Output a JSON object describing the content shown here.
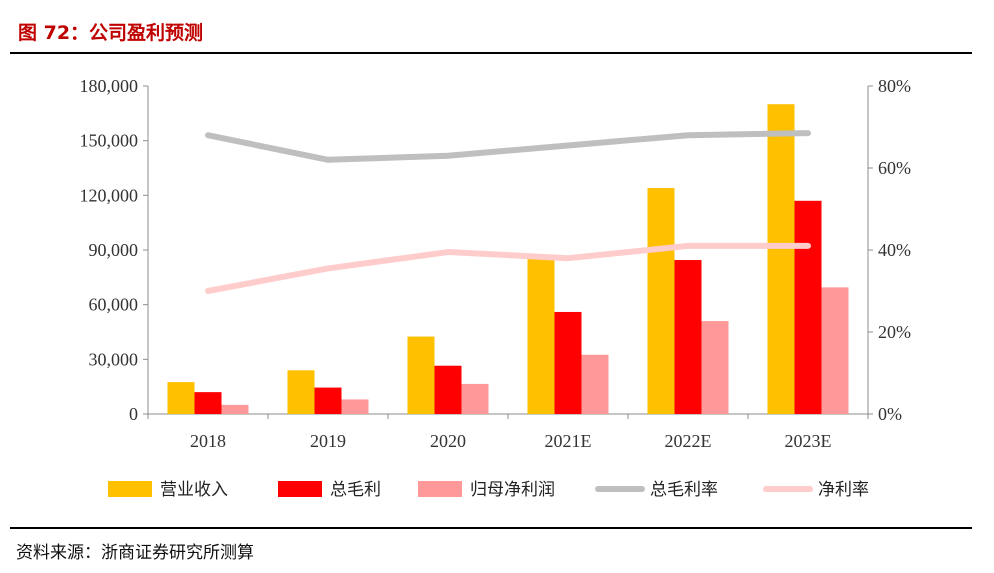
{
  "figure_title": "图 72：公司盈利预测",
  "source": "资料来源：浙商证券研究所测算",
  "chart_data": {
    "type": "bar",
    "title": "图 72：公司盈利预测",
    "categories": [
      "2018",
      "2019",
      "2020",
      "2021E",
      "2022E",
      "2023E"
    ],
    "ylim": [
      0,
      180000
    ],
    "y_ticks": [
      0,
      30000,
      60000,
      90000,
      120000,
      150000,
      180000
    ],
    "y_tick_labels": [
      "0",
      "30,000",
      "60,000",
      "90,000",
      "120,000",
      "150,000",
      "180,000"
    ],
    "y2lim": [
      0,
      80
    ],
    "y2_ticks": [
      0,
      20,
      40,
      60,
      80
    ],
    "y2_tick_labels": [
      "0%",
      "20%",
      "40%",
      "60%",
      "80%"
    ],
    "series": [
      {
        "name": "营业收入",
        "kind": "bar",
        "axis": "left",
        "color": "#ffc000",
        "values": [
          17500,
          24000,
          42500,
          86000,
          124000,
          170000
        ]
      },
      {
        "name": "总毛利",
        "kind": "bar",
        "axis": "left",
        "color": "#ff0000",
        "values": [
          12000,
          14500,
          26500,
          56000,
          84500,
          117000
        ]
      },
      {
        "name": "归母净利润",
        "kind": "bar",
        "axis": "left",
        "color": "#ff9999",
        "values": [
          5000,
          8000,
          16500,
          32500,
          51000,
          69500
        ]
      },
      {
        "name": "总毛利率",
        "kind": "line",
        "axis": "right",
        "color": "#bfbfbf",
        "values": [
          68,
          62,
          63,
          65.5,
          68,
          68.5
        ]
      },
      {
        "name": "净利率",
        "kind": "line",
        "axis": "right",
        "color": "#ffcccc",
        "values": [
          30,
          35.5,
          39.5,
          38,
          41,
          41
        ]
      }
    ],
    "legend_position": "bottom",
    "grid": false
  }
}
